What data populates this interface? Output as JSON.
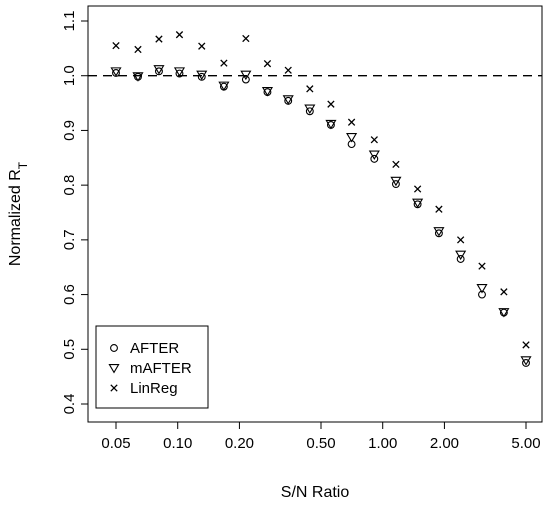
{
  "chart_data": {
    "type": "scatter",
    "title": "",
    "xlabel": "S/N Ratio",
    "ylabel_main": "Normalized R",
    "ylabel_sub": "T",
    "x_scale": "log",
    "xlim": [
      0.05,
      5.0
    ],
    "ylim": [
      0.4,
      1.1
    ],
    "xticks": [
      0.05,
      0.1,
      0.2,
      0.5,
      1.0,
      2.0,
      5.0
    ],
    "xtick_labels": [
      "0.05",
      "0.10",
      "0.20",
      "0.50",
      "1.00",
      "2.00",
      "5.00"
    ],
    "yticks": [
      0.4,
      0.5,
      0.6,
      0.7,
      0.8,
      0.9,
      1.0,
      1.1
    ],
    "ytick_labels": [
      "0.4",
      "0.5",
      "0.6",
      "0.7",
      "0.8",
      "0.9",
      "1.0",
      "1.1"
    ],
    "reference_line": {
      "y": 1.0,
      "style": "dashed"
    },
    "grid": false,
    "legend_position": "bottom-left",
    "x": [
      0.05,
      0.064,
      0.081,
      0.102,
      0.131,
      0.168,
      0.215,
      0.274,
      0.346,
      0.441,
      0.559,
      0.705,
      0.91,
      1.16,
      1.48,
      1.88,
      2.4,
      3.05,
      3.9,
      5.0
    ],
    "series": [
      {
        "name": "AFTER",
        "marker": "circle",
        "values": [
          1.005,
          0.998,
          1.008,
          1.004,
          0.998,
          0.98,
          0.993,
          0.97,
          0.954,
          0.935,
          0.91,
          0.875,
          0.848,
          0.802,
          0.765,
          0.712,
          0.665,
          0.6,
          0.567,
          0.475
        ]
      },
      {
        "name": "mAFTER",
        "marker": "triangle-down",
        "values": [
          1.008,
          0.999,
          1.012,
          1.008,
          1.002,
          0.982,
          1.002,
          0.972,
          0.957,
          0.94,
          0.912,
          0.888,
          0.856,
          0.808,
          0.768,
          0.716,
          0.673,
          0.612,
          0.568,
          0.48
        ]
      },
      {
        "name": "LinReg",
        "marker": "cross",
        "values": [
          1.055,
          1.048,
          1.067,
          1.075,
          1.054,
          1.023,
          1.068,
          1.022,
          1.01,
          0.976,
          0.948,
          0.915,
          0.883,
          0.838,
          0.793,
          0.756,
          0.7,
          0.652,
          0.605,
          0.508
        ]
      }
    ]
  }
}
